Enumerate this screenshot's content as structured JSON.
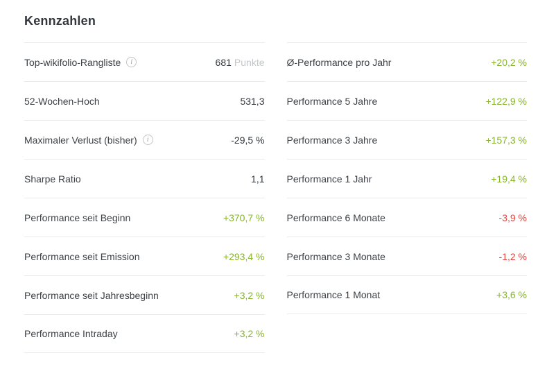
{
  "title": "Kennzahlen",
  "colors": {
    "green": "#86b42a",
    "red": "#e0423c",
    "dark": "#32373c",
    "muted": "#c3c6c8"
  },
  "left_rows": [
    {
      "label": "Top-wikifolio-Rangliste",
      "has_info": true,
      "value": "681",
      "suffix": "Punkte",
      "tone": "dark"
    },
    {
      "label": "52-Wochen-Hoch",
      "value": "531,3",
      "tone": "dark"
    },
    {
      "label": "Maximaler Verlust (bisher)",
      "has_info": true,
      "value": "-29,5 %",
      "tone": "dark"
    },
    {
      "label": "Sharpe Ratio",
      "value": "1,1",
      "tone": "dark"
    },
    {
      "label": "Performance seit Beginn",
      "value": "+370,7 %",
      "tone": "green"
    },
    {
      "label": "Performance seit Emission",
      "value": "+293,4 %",
      "tone": "green"
    },
    {
      "label": "Performance seit Jahresbeginn",
      "value": "+3,2 %",
      "tone": "green"
    },
    {
      "label": "Performance Intraday",
      "value": "+3,2 %",
      "tone": "green"
    }
  ],
  "right_rows": [
    {
      "label": "Ø-Performance pro Jahr",
      "value": "+20,2 %",
      "tone": "green"
    },
    {
      "label": "Performance 5 Jahre",
      "value": "+122,9 %",
      "tone": "green"
    },
    {
      "label": "Performance 3 Jahre",
      "value": "+157,3 %",
      "tone": "green"
    },
    {
      "label": "Performance 1 Jahr",
      "value": "+19,4 %",
      "tone": "green"
    },
    {
      "label": "Performance 6 Monate",
      "value": "-3,9 %",
      "tone": "red"
    },
    {
      "label": "Performance 3 Monate",
      "value": "-1,2 %",
      "tone": "red"
    },
    {
      "label": "Performance 1 Monat",
      "value": "+3,6 %",
      "tone": "green"
    }
  ]
}
